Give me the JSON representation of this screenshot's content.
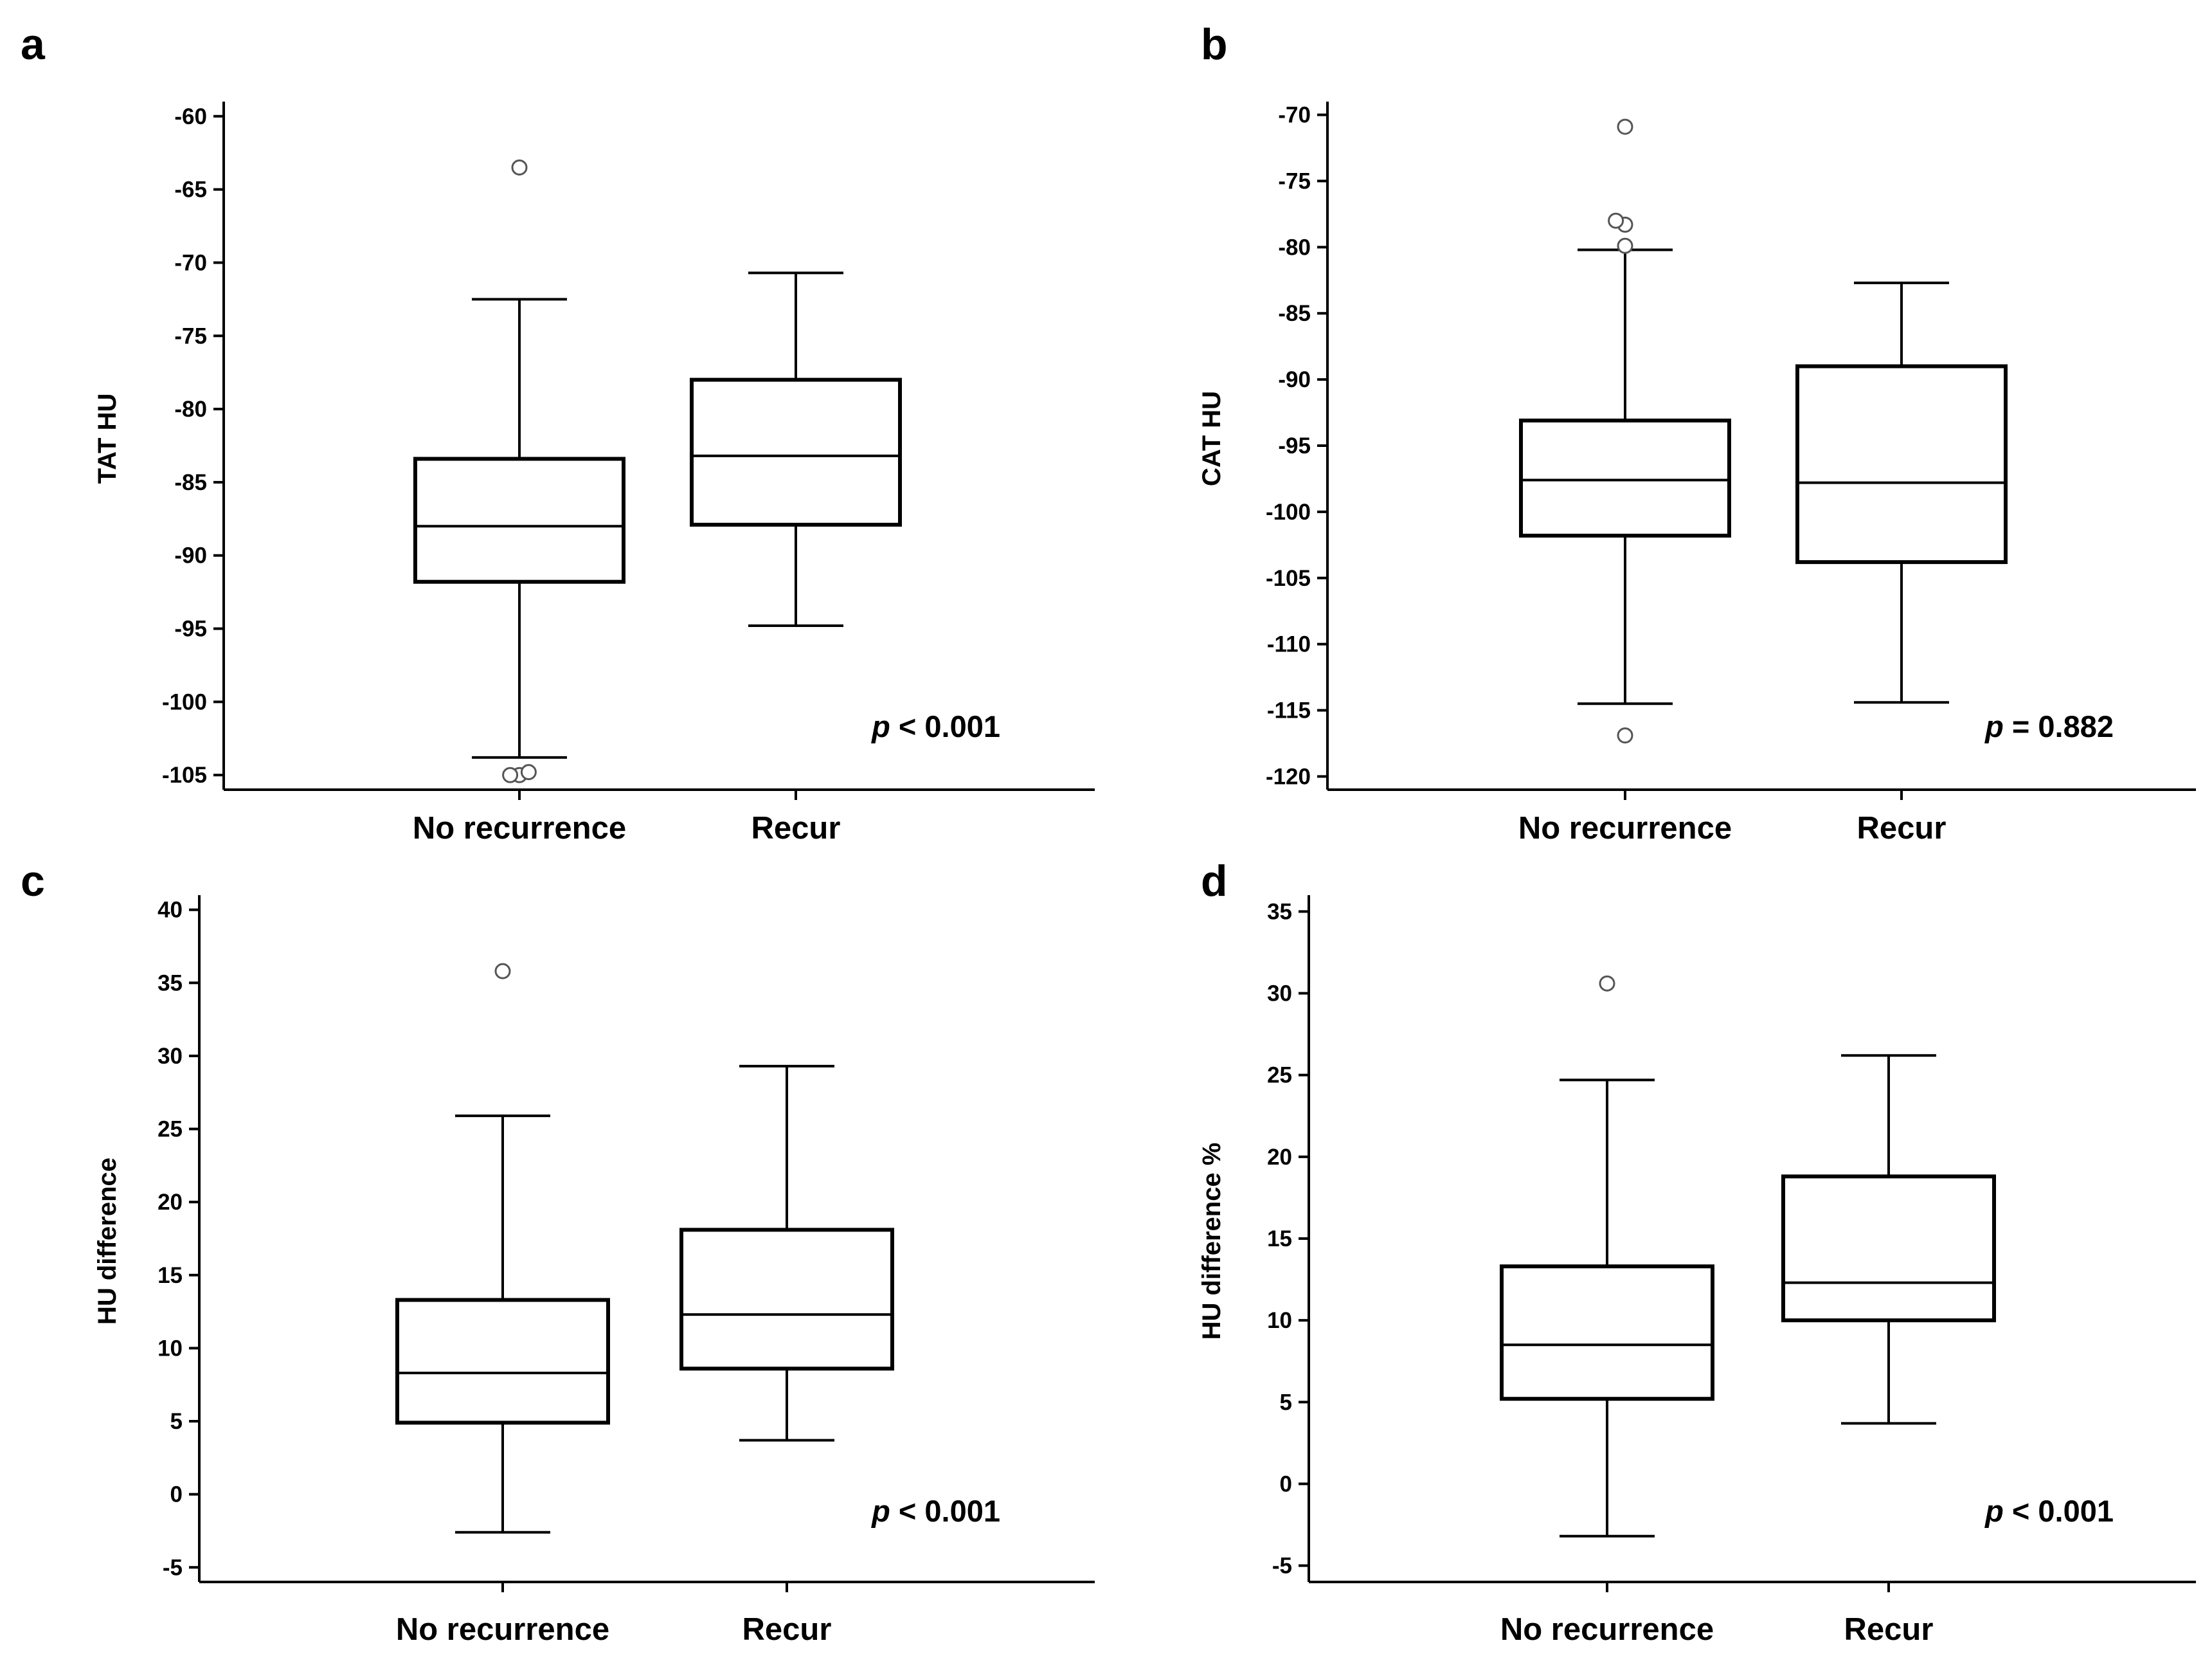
{
  "chart_data": [
    {
      "type": "box",
      "panel_label": "a",
      "title": "",
      "xlabel": "",
      "ylabel": "TAT HU",
      "ylim": [
        -106,
        -59
      ],
      "y_ticks": [
        -60,
        -65,
        -70,
        -75,
        -80,
        -85,
        -90,
        -95,
        -100,
        -105
      ],
      "y_tick_labels": [
        "-60",
        "-65",
        "-70",
        "-75",
        "-80",
        "-85",
        "-90",
        "-95",
        "-100",
        "-105"
      ],
      "categories": [
        "No recurrence",
        "Recur"
      ],
      "boxes": [
        {
          "name": "No recurrence",
          "whisker_low": -103.8,
          "q1": -91.8,
          "median": -88.0,
          "q3": -83.4,
          "whisker_high": -72.5,
          "outliers": [
            -63.5,
            -105.0,
            -105.0,
            -104.8
          ]
        },
        {
          "name": "Recur",
          "whisker_low": -94.8,
          "q1": -87.9,
          "median": -83.2,
          "q3": -78.0,
          "whisker_high": -70.7,
          "outliers": []
        }
      ],
      "annotation": {
        "symbol": "p",
        "text": " < 0.001"
      }
    },
    {
      "type": "box",
      "panel_label": "b",
      "title": "",
      "xlabel": "",
      "ylabel": "CAT HU",
      "ylim": [
        -121,
        -69
      ],
      "y_ticks": [
        -70,
        -75,
        -80,
        -85,
        -90,
        -95,
        -100,
        -105,
        -110,
        -115,
        -120
      ],
      "y_tick_labels": [
        "-70",
        "-75",
        "-80",
        "-85",
        "-90",
        "-95",
        "-100",
        "-105",
        "-110",
        "-115",
        "-120"
      ],
      "categories": [
        "No recurrence",
        "Recur"
      ],
      "boxes": [
        {
          "name": "No recurrence",
          "whisker_low": -114.5,
          "q1": -101.8,
          "median": -97.6,
          "q3": -93.1,
          "whisker_high": -80.2,
          "outliers": [
            -70.9,
            -78.3,
            -78.0,
            -79.9,
            -116.9
          ]
        },
        {
          "name": "Recur",
          "whisker_low": -114.4,
          "q1": -103.8,
          "median": -97.8,
          "q3": -89.0,
          "whisker_high": -82.7,
          "outliers": []
        }
      ],
      "annotation": {
        "symbol": "p",
        "text": " = 0.882"
      }
    },
    {
      "type": "box",
      "panel_label": "c",
      "title": "",
      "xlabel": "",
      "ylabel": "HU difference",
      "ylim": [
        -6,
        41
      ],
      "y_ticks": [
        40,
        35,
        30,
        25,
        20,
        15,
        10,
        5,
        0,
        -5
      ],
      "y_tick_labels": [
        "40",
        "35",
        "30",
        "25",
        "20",
        "15",
        "10",
        "5",
        "0",
        "-5"
      ],
      "categories": [
        "No recurrence",
        "Recur"
      ],
      "boxes": [
        {
          "name": "No recurrence",
          "whisker_low": -2.6,
          "q1": 4.9,
          "median": 8.3,
          "q3": 13.3,
          "whisker_high": 25.9,
          "outliers": [
            35.8
          ]
        },
        {
          "name": "Recur",
          "whisker_low": 3.7,
          "q1": 8.6,
          "median": 12.3,
          "q3": 18.1,
          "whisker_high": 29.3,
          "outliers": []
        }
      ],
      "annotation": {
        "symbol": "p",
        "text": " < 0.001"
      }
    },
    {
      "type": "box",
      "panel_label": "d",
      "title": "",
      "xlabel": "",
      "ylabel": "HU difference %",
      "ylim": [
        -6,
        36
      ],
      "y_ticks": [
        35,
        30,
        25,
        20,
        15,
        10,
        5,
        0,
        -5
      ],
      "y_tick_labels": [
        "35",
        "30",
        "25",
        "20",
        "15",
        "10",
        "5",
        "0",
        "-5"
      ],
      "categories": [
        "No recurrence",
        "Recur"
      ],
      "boxes": [
        {
          "name": "No recurrence",
          "whisker_low": -3.2,
          "q1": 5.2,
          "median": 8.5,
          "q3": 13.3,
          "whisker_high": 24.7,
          "outliers": [
            30.6
          ]
        },
        {
          "name": "Recur",
          "whisker_low": 3.7,
          "q1": 10.0,
          "median": 12.3,
          "q3": 18.8,
          "whisker_high": 26.2,
          "outliers": []
        }
      ],
      "annotation": {
        "symbol": "p",
        "text": " < 0.001"
      }
    }
  ]
}
